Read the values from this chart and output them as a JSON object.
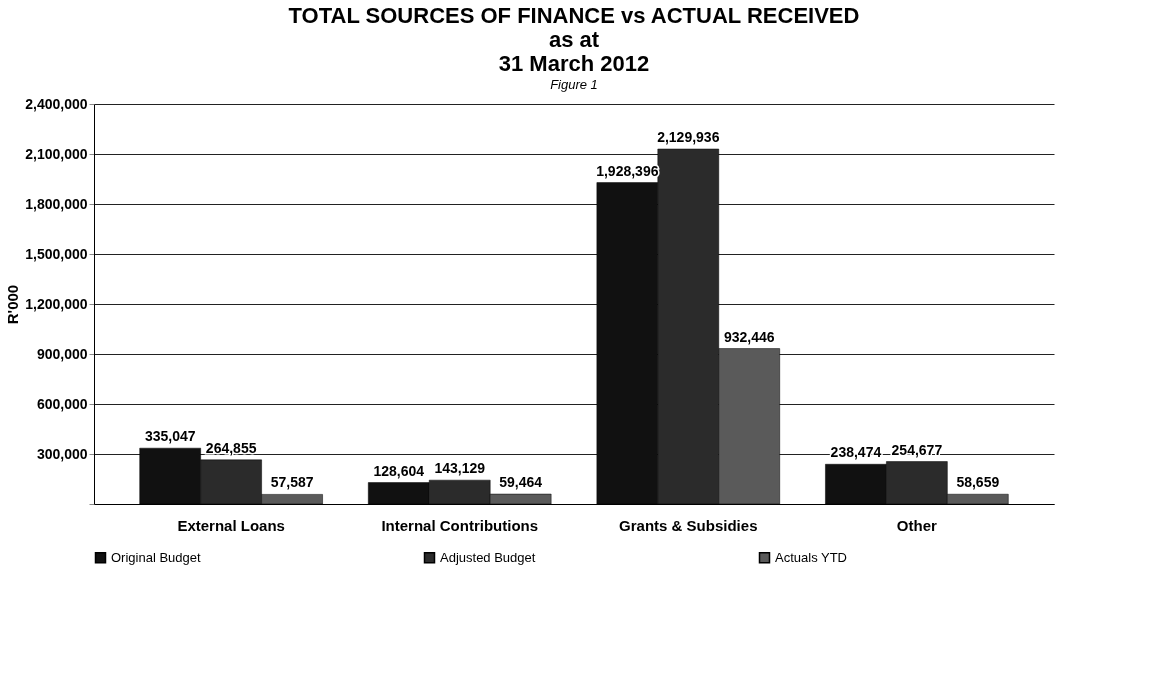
{
  "chart_data": {
    "type": "bar",
    "title": "TOTAL SOURCES OF FINANCE vs ACTUAL RECEIVED\nas at\n31 March 2012",
    "ylabel": "R'000",
    "annotations": [
      "Figure 1"
    ],
    "categories": [
      "External Loans",
      "Internal Contributions",
      "Grants & Subsidies",
      "Other"
    ],
    "series": [
      {
        "name": "Original Budget",
        "color": "#111111",
        "values": [
          335047,
          128604,
          1928396,
          238474
        ],
        "value_labels": [
          "335,047",
          "128,604",
          "1,928,396",
          "238,474"
        ]
      },
      {
        "name": "Adjusted Budget",
        "color": "#2b2b2b",
        "values": [
          264855,
          143129,
          2129936,
          254677
        ],
        "value_labels": [
          "264,855",
          "143,129",
          "2,129,936",
          "254,677"
        ]
      },
      {
        "name": "Actuals   YTD",
        "color": "#5a5a5a",
        "values": [
          57587,
          59464,
          932446,
          58659
        ],
        "value_labels": [
          "57,587",
          "59,464",
          "932,446",
          "58,659"
        ]
      }
    ],
    "ylim": [
      0,
      2400000
    ],
    "yticks": [
      {
        "value": 0,
        "label": null
      },
      {
        "value": 300000,
        "label": "300,000"
      },
      {
        "value": 600000,
        "label": "600,000"
      },
      {
        "value": 900000,
        "label": "900,000"
      },
      {
        "value": 1200000,
        "label": "1,200,000"
      },
      {
        "value": 1500000,
        "label": "1,500,000"
      },
      {
        "value": 1800000,
        "label": "1,800,000"
      },
      {
        "value": 2100000,
        "label": "2,100,000"
      },
      {
        "value": 2400000,
        "label": "2,400,000"
      }
    ],
    "grid": "y",
    "legend": "bottom"
  }
}
